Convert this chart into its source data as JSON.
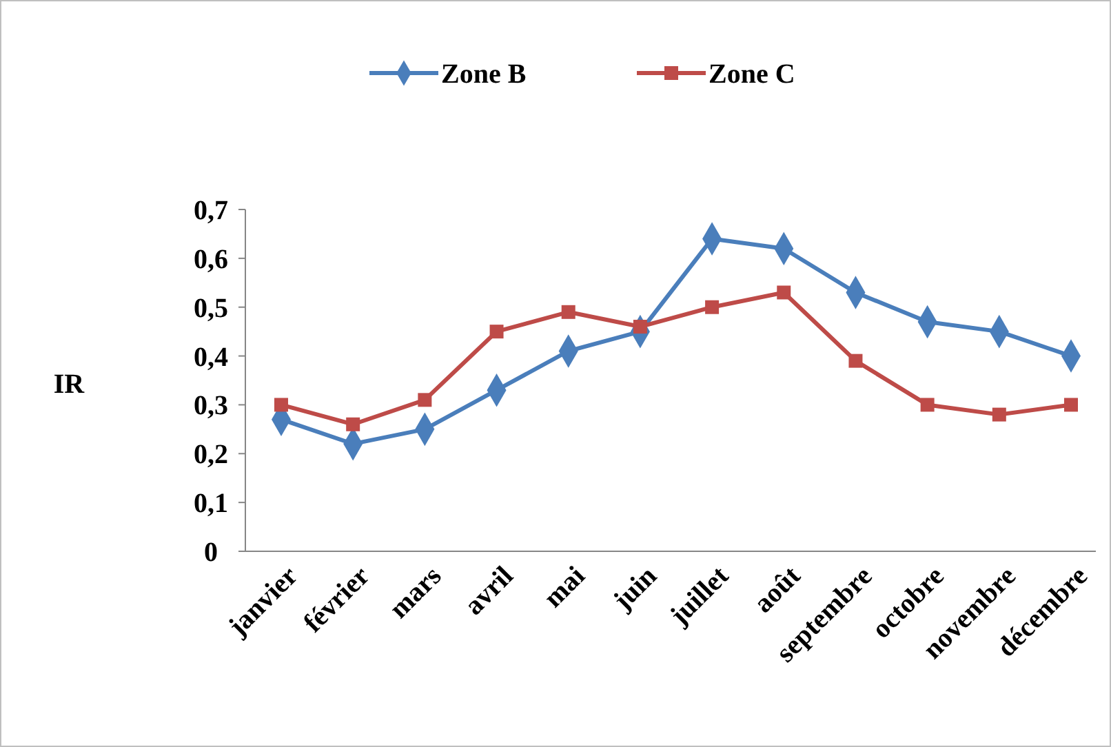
{
  "chart_data": {
    "type": "line",
    "ylabel": "IR",
    "categories": [
      "janvier",
      "février",
      "mars",
      "avril",
      "mai",
      "juin",
      "juillet",
      "août",
      "septembre",
      "octobre",
      "novembre",
      "décembre"
    ],
    "series": [
      {
        "name": "Zone B",
        "color": "#4a7ebb",
        "marker": "diamond",
        "values": [
          0.27,
          0.22,
          0.25,
          0.33,
          0.41,
          0.45,
          0.64,
          0.62,
          0.53,
          0.47,
          0.45,
          0.4
        ]
      },
      {
        "name": "Zone C",
        "color": "#be4b48",
        "marker": "square",
        "values": [
          0.3,
          0.26,
          0.31,
          0.45,
          0.49,
          0.46,
          0.5,
          0.53,
          0.39,
          0.3,
          0.28,
          0.3
        ]
      }
    ],
    "ylim": [
      0,
      0.7
    ],
    "yticks": [
      0,
      {
        "value": 0.1,
        "label": "0,1"
      },
      {
        "value": 0.2,
        "label": "0,2"
      },
      {
        "value": 0.3,
        "label": "0,3"
      },
      {
        "value": 0.4,
        "label": "0,4"
      },
      {
        "value": 0.5,
        "label": "0,5"
      },
      {
        "value": 0.6,
        "label": "0,6"
      },
      {
        "value": 0.7,
        "label": "0,7"
      }
    ],
    "legend": "top",
    "grid": false,
    "line_style": "solid"
  }
}
